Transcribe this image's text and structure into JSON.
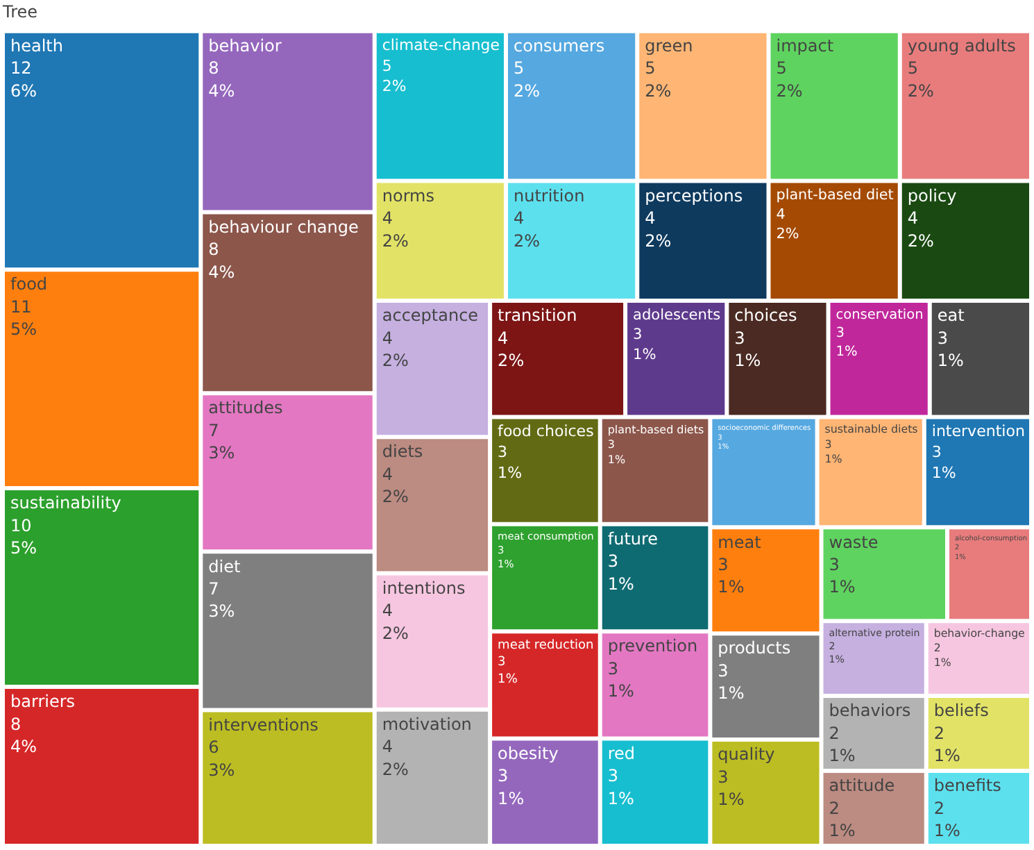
{
  "chart_data": {
    "type": "other",
    "title": "Tree",
    "categories": [
      "health",
      "food",
      "sustainability",
      "barriers",
      "behavior",
      "behaviour change",
      "attitudes",
      "diet",
      "interventions",
      "climate-change",
      "consumers",
      "green",
      "impact",
      "young adults",
      "norms",
      "nutrition",
      "perceptions",
      "plant-based diet",
      "policy",
      "acceptance",
      "diets",
      "intentions",
      "motivation",
      "transition",
      "adolescents",
      "choices",
      "conservation",
      "eat",
      "food choices",
      "meat consumption",
      "meat reduction",
      "obesity",
      "plant-based diets",
      "future",
      "prevention",
      "red",
      "socioeconomic differences",
      "sustainable diets",
      "intervention",
      "meat",
      "products",
      "quality",
      "waste",
      "alcohol-consumption",
      "alternative protein",
      "behavior-change",
      "behaviors",
      "attitude",
      "beliefs",
      "benefits"
    ],
    "values": [
      12,
      11,
      10,
      8,
      8,
      8,
      7,
      7,
      6,
      5,
      5,
      5,
      5,
      5,
      4,
      4,
      4,
      4,
      4,
      4,
      4,
      4,
      4,
      4,
      3,
      3,
      3,
      3,
      3,
      3,
      3,
      3,
      3,
      3,
      3,
      3,
      3,
      3,
      3,
      3,
      3,
      3,
      3,
      2,
      2,
      2,
      2,
      2,
      2,
      2
    ],
    "annotations": [
      "6%",
      "5%",
      "5%",
      "4%",
      "4%",
      "4%",
      "3%",
      "3%",
      "3%",
      "2%",
      "2%",
      "2%",
      "2%",
      "2%",
      "2%",
      "2%",
      "2%",
      "2%",
      "2%",
      "2%",
      "2%",
      "2%",
      "2%",
      "2%",
      "1%",
      "1%",
      "1%",
      "1%",
      "1%",
      "1%",
      "1%",
      "1%",
      "1%",
      "1%",
      "1%",
      "1%",
      "1%",
      "1%",
      "1%",
      "1%",
      "1%",
      "1%",
      "1%",
      "1%",
      "1%",
      "1%",
      "1%",
      "1%",
      "1%",
      "1%"
    ],
    "colors": [
      "#1f77b4",
      "#ff7f0e",
      "#2ca02c",
      "#d62728",
      "#9467bd",
      "#8c564b",
      "#e377c2",
      "#7f7f7f",
      "#bcbd22",
      "#17becf",
      "#56a8e0",
      "#ffb574",
      "#5fd35f",
      "#e87c7c",
      "#e2e366",
      "#5ce0ee",
      "#0e3a5e",
      "#a44a02",
      "#1a4a12",
      "#c5b0e0",
      "#bc8b81",
      "#f6c6e0",
      "#b3b3b3",
      "#7d1515",
      "#5e3a8c",
      "#4a2a22",
      "#c0279b",
      "#4a4a4a",
      "#626b14",
      "#2ea12e",
      "#d62728",
      "#9467bd",
      "#8c564b",
      "#0f6b72",
      "#e377c2",
      "#17becf",
      "#56a8e0",
      "#ffb574",
      "#1f77b4",
      "#ff7f0e",
      "#7f7f7f",
      "#bcbd22",
      "#5fd35f",
      "#e87c7c",
      "#c5b0e0",
      "#f6c6e0",
      "#b3b3b3",
      "#bc8b81",
      "#e2e366",
      "#5ce0ee"
    ],
    "data_labels": true
  }
}
